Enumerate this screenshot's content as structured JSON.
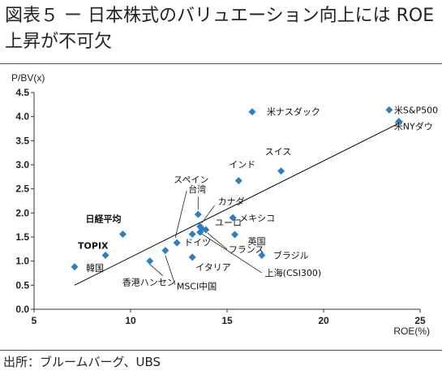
{
  "header": {
    "figure_no": "図表５",
    "dash": "ー",
    "title_text": "日本株式のバリュエーション向上には ROE上昇が不可欠"
  },
  "source": "出所：ブルームバーグ、UBS",
  "colors": {
    "marker": "#2e7fbf",
    "trendline": "#000000",
    "axis": "#333333"
  },
  "chart_data": {
    "type": "scatter",
    "xlabel": "ROE(%)",
    "ylabel": "P/BV(x)",
    "xlim": [
      5,
      25
    ],
    "ylim": [
      0,
      4.5
    ],
    "x_ticks": [
      "5",
      "10",
      "15",
      "20",
      "25"
    ],
    "y_ticks": [
      "0.0",
      "0.5",
      "1.0",
      "1.5",
      "2.0",
      "2.5",
      "3.0",
      "3.5",
      "4.0",
      "4.5"
    ],
    "grid": false,
    "trendline": {
      "x": [
        7.1,
        24.1
      ],
      "y": [
        0.5,
        3.9
      ]
    },
    "points": [
      {
        "label": "米ナスダック",
        "x": 16.3,
        "y": 4.1
      },
      {
        "label": "米S&P500",
        "x": 23.4,
        "y": 4.14
      },
      {
        "label": "米NYダウ",
        "x": 23.9,
        "y": 3.9
      },
      {
        "label": "スイス",
        "x": 17.8,
        "y": 2.87
      },
      {
        "label": "インド",
        "x": 15.6,
        "y": 2.67
      },
      {
        "label": "台湾",
        "x": 13.5,
        "y": 1.97
      },
      {
        "label": "カナダ",
        "x": 13.6,
        "y": 1.72
      },
      {
        "label": "メキシコ",
        "x": 15.3,
        "y": 1.9
      },
      {
        "label": "ユーロ",
        "x": 13.7,
        "y": 1.67
      },
      {
        "label": "英国",
        "x": 15.4,
        "y": 1.55
      },
      {
        "label": "ドイツ",
        "x": 13.2,
        "y": 1.56
      },
      {
        "label": "フランス",
        "x": 13.9,
        "y": 1.65
      },
      {
        "label": "ブラジル",
        "x": 16.8,
        "y": 1.12
      },
      {
        "label": "イタリア",
        "x": 13.2,
        "y": 1.08
      },
      {
        "label": "上海(CSI300)",
        "x": 13.6,
        "y": 1.6
      },
      {
        "label": "スペイン",
        "x": 12.4,
        "y": 1.38
      },
      {
        "label": "MSCI中国",
        "x": 11.8,
        "y": 1.22
      },
      {
        "label": "香港ハンセン",
        "x": 11.0,
        "y": 1.0
      },
      {
        "label": "日経平均",
        "x": 9.6,
        "y": 1.56
      },
      {
        "label": "TOPIX",
        "x": 8.7,
        "y": 1.12
      },
      {
        "label": "韓国",
        "x": 7.1,
        "y": 0.88
      }
    ]
  }
}
